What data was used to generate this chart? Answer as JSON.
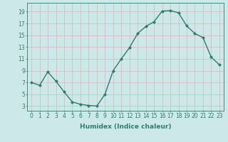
{
  "x": [
    0,
    1,
    2,
    3,
    4,
    5,
    6,
    7,
    8,
    9,
    10,
    11,
    12,
    13,
    14,
    15,
    16,
    17,
    18,
    19,
    20,
    21,
    22,
    23
  ],
  "y": [
    7.0,
    6.5,
    8.8,
    7.2,
    5.4,
    3.7,
    3.3,
    3.1,
    3.0,
    5.0,
    9.0,
    11.0,
    12.9,
    15.3,
    16.5,
    17.3,
    19.1,
    19.2,
    18.8,
    16.6,
    15.3,
    14.6,
    11.3,
    10.0
  ],
  "line_color": "#2e7d6e",
  "marker": "D",
  "marker_size": 2.0,
  "bg_color": "#cce8e8",
  "grid_color": "#b0d0d0",
  "xlabel": "Humidex (Indice chaleur)",
  "xlabel_fontsize": 6.5,
  "xtick_labels": [
    "0",
    "1",
    "2",
    "3",
    "4",
    "5",
    "6",
    "7",
    "8",
    "9",
    "10",
    "11",
    "12",
    "13",
    "14",
    "15",
    "16",
    "17",
    "18",
    "19",
    "20",
    "21",
    "22",
    "23"
  ],
  "xticks": [
    0,
    1,
    2,
    3,
    4,
    5,
    6,
    7,
    8,
    9,
    10,
    11,
    12,
    13,
    14,
    15,
    16,
    17,
    18,
    19,
    20,
    21,
    22,
    23
  ],
  "yticks": [
    3,
    5,
    7,
    9,
    11,
    13,
    15,
    17,
    19
  ],
  "ylim": [
    2.2,
    20.5
  ],
  "xlim": [
    -0.5,
    23.5
  ],
  "tick_fontsize": 5.5,
  "line_width": 1.0
}
